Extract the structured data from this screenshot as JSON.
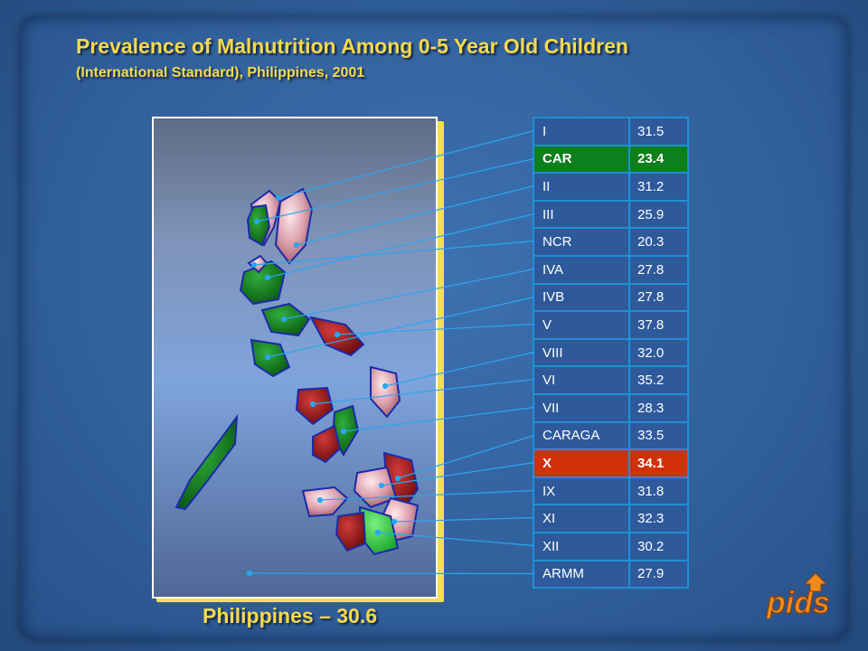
{
  "header": {
    "title": "Prevalence of Malnutrition Among 0-5 Year Old Children",
    "subtitle": "(International Standard), Philippines, 2001"
  },
  "caption": "Philippines – 30.6",
  "logo_text": "pids",
  "colors": {
    "title": "#f5d94c",
    "highlight_green": "#0d7f1c",
    "highlight_red": "#d2300b",
    "table_border": "#1f8fd6",
    "leader_line": "#2aa6f0"
  },
  "chart_data": {
    "type": "table",
    "title": "Prevalence of Malnutrition Among 0-5 Year Old Children",
    "subtitle": "(International Standard), Philippines, 2001",
    "national_value_label": "Philippines – 30.6",
    "rows": [
      {
        "region": "I",
        "value": "31.5",
        "highlight": ""
      },
      {
        "region": "CAR",
        "value": "23.4",
        "highlight": "green"
      },
      {
        "region": "II",
        "value": "31.2",
        "highlight": ""
      },
      {
        "region": "III",
        "value": "25.9",
        "highlight": ""
      },
      {
        "region": "NCR",
        "value": "20.3",
        "highlight": ""
      },
      {
        "region": "IVA",
        "value": "27.8",
        "highlight": ""
      },
      {
        "region": "IVB",
        "value": "27.8",
        "highlight": ""
      },
      {
        "region": "V",
        "value": "37.8",
        "highlight": ""
      },
      {
        "region": "VIII",
        "value": "32.0",
        "highlight": ""
      },
      {
        "region": "VI",
        "value": "35.2",
        "highlight": ""
      },
      {
        "region": "VII",
        "value": "28.3",
        "highlight": ""
      },
      {
        "region": "CARAGA",
        "value": "33.5",
        "highlight": ""
      },
      {
        "region": "X",
        "value": "34.1",
        "highlight": "red"
      },
      {
        "region": "IX",
        "value": "31.8",
        "highlight": ""
      },
      {
        "region": "XI",
        "value": "32.3",
        "highlight": ""
      },
      {
        "region": "XII",
        "value": "30.2",
        "highlight": ""
      },
      {
        "region": "ARMM",
        "value": "27.9",
        "highlight": ""
      }
    ]
  }
}
